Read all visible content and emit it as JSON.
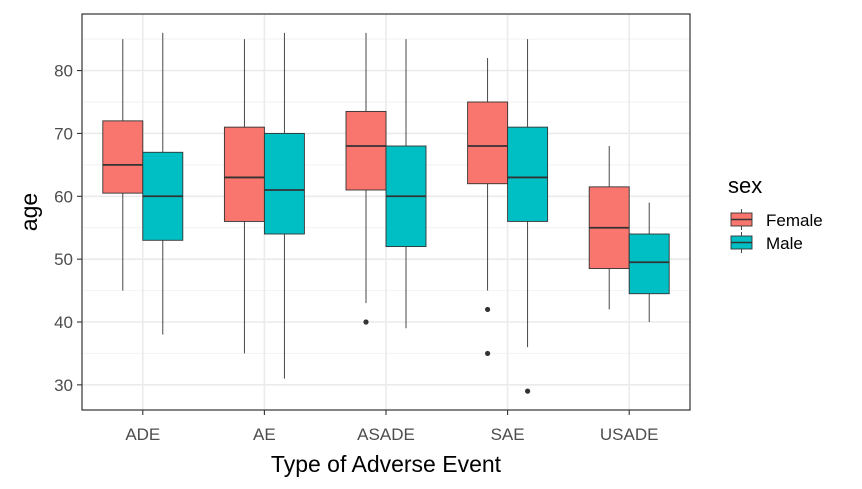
{
  "chart_data": {
    "type": "boxplot",
    "xlabel": "Type of Adverse Event",
    "ylabel": "age",
    "ylim": [
      26,
      89
    ],
    "yticks": [
      30,
      40,
      50,
      60,
      70,
      80
    ],
    "grid": true,
    "legend": {
      "title": "sex",
      "position": "right"
    },
    "categories": [
      "ADE",
      "AE",
      "ASADE",
      "SAE",
      "USADE"
    ],
    "series": [
      {
        "name": "Female",
        "color": "#F8766D",
        "boxes": [
          {
            "whisker_low": 45,
            "q1": 60.5,
            "median": 65,
            "q3": 72,
            "whisker_high": 85,
            "outliers": []
          },
          {
            "whisker_low": 35,
            "q1": 56,
            "median": 63,
            "q3": 71,
            "whisker_high": 85,
            "outliers": []
          },
          {
            "whisker_low": 43,
            "q1": 61,
            "median": 68,
            "q3": 73.5,
            "whisker_high": 86,
            "outliers": [
              40
            ]
          },
          {
            "whisker_low": 45,
            "q1": 62,
            "median": 68,
            "q3": 75,
            "whisker_high": 82,
            "outliers": [
              42,
              35
            ]
          },
          {
            "whisker_low": 42,
            "q1": 48.5,
            "median": 55,
            "q3": 61.5,
            "whisker_high": 68,
            "outliers": []
          }
        ]
      },
      {
        "name": "Male",
        "color": "#00BFC4",
        "boxes": [
          {
            "whisker_low": 38,
            "q1": 53,
            "median": 60,
            "q3": 67,
            "whisker_high": 86,
            "outliers": []
          },
          {
            "whisker_low": 31,
            "q1": 54,
            "median": 61,
            "q3": 70,
            "whisker_high": 86,
            "outliers": []
          },
          {
            "whisker_low": 39,
            "q1": 52,
            "median": 60,
            "q3": 68,
            "whisker_high": 85,
            "outliers": []
          },
          {
            "whisker_low": 36,
            "q1": 56,
            "median": 63,
            "q3": 71,
            "whisker_high": 85,
            "outliers": [
              29
            ]
          },
          {
            "whisker_low": 40,
            "q1": 44.5,
            "median": 49.5,
            "q3": 54,
            "whisker_high": 59,
            "outliers": []
          }
        ]
      }
    ]
  }
}
